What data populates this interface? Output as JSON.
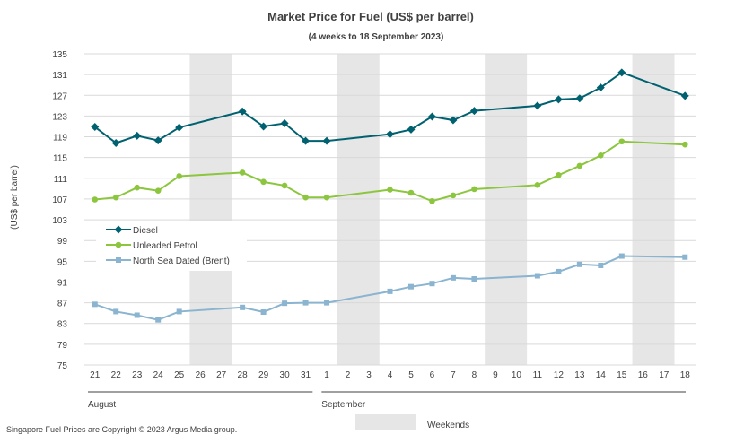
{
  "chart_data": {
    "type": "line",
    "title": "Market Price for Fuel (US$ per barrel)",
    "subtitle": "(4 weeks to 18 September 2023)",
    "ylabel": "(US$ per barrel)",
    "ylim": [
      75,
      135
    ],
    "yticks": [
      75,
      79,
      83,
      87,
      91,
      95,
      99,
      103,
      107,
      111,
      115,
      119,
      123,
      127,
      131,
      135
    ],
    "grid": true,
    "categories": [
      "21",
      "22",
      "23",
      "24",
      "25",
      "26",
      "27",
      "28",
      "29",
      "30",
      "31",
      "1",
      "2",
      "3",
      "4",
      "5",
      "6",
      "7",
      "8",
      "9",
      "10",
      "11",
      "12",
      "13",
      "14",
      "15",
      "16",
      "17",
      "18"
    ],
    "month_groups": [
      {
        "label": "August",
        "start": 0,
        "end": 10
      },
      {
        "label": "September",
        "start": 11,
        "end": 28
      }
    ],
    "weekend_bands": [
      [
        5,
        6
      ],
      [
        12,
        13
      ],
      [
        19,
        20
      ],
      [
        26,
        27
      ]
    ],
    "weekend_label": "Weekends",
    "weekend_color": "#e6e6e6",
    "series": [
      {
        "name": "Diesel",
        "color": "#006170",
        "marker": "diamond",
        "values": [
          120.9,
          117.8,
          119.2,
          118.3,
          120.8,
          null,
          null,
          123.9,
          121.0,
          121.6,
          118.2,
          118.2,
          null,
          null,
          119.5,
          120.4,
          122.9,
          122.2,
          124.0,
          null,
          null,
          125.0,
          126.2,
          126.4,
          128.5,
          131.4,
          null,
          null,
          126.9
        ]
      },
      {
        "name": "Unleaded Petrol",
        "color": "#8cc63e",
        "marker": "circle",
        "values": [
          106.9,
          107.3,
          109.2,
          108.6,
          111.4,
          null,
          null,
          112.1,
          110.3,
          109.6,
          107.3,
          107.3,
          null,
          null,
          108.8,
          108.2,
          106.6,
          107.7,
          108.9,
          null,
          null,
          109.7,
          111.6,
          113.4,
          115.4,
          118.1,
          null,
          null,
          117.5
        ]
      },
      {
        "name": "North Sea Dated (Brent)",
        "color": "#8ab4d0",
        "marker": "square",
        "values": [
          86.7,
          85.3,
          84.6,
          83.7,
          85.3,
          null,
          null,
          86.1,
          85.2,
          86.9,
          87.0,
          87.0,
          null,
          null,
          89.2,
          90.1,
          90.7,
          91.8,
          91.6,
          null,
          null,
          92.2,
          93.0,
          94.4,
          94.2,
          96.0,
          null,
          null,
          95.8
        ]
      }
    ]
  },
  "footer": "Singapore Fuel Prices are Copyright © 2023 Argus Media group."
}
